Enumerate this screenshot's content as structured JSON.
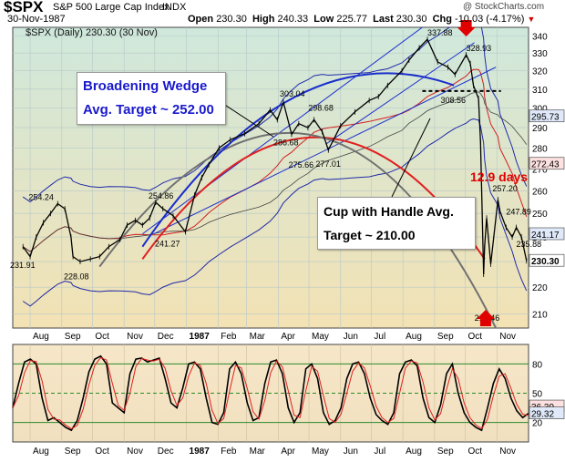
{
  "header": {
    "symbol": "$SPX",
    "name": "S&P 500 Large Cap Index",
    "exchange": "INDX",
    "date": "30-Nov-1987",
    "open_label": "Open",
    "open": "230.30",
    "high_label": "High",
    "high": "240.33",
    "low_label": "Low",
    "low": "225.77",
    "last_label": "Last",
    "last": "230.30",
    "chg_label": "Chg",
    "chg": "-10.03 (-4.17%)",
    "chg_arrow": "▼",
    "watermark": "@ StockCharts.com",
    "legend": "$SPX (Daily) 230.30 (30 Nov)"
  },
  "colors": {
    "price": "#000000",
    "red": "#e02020",
    "blue": "#1a2ecc",
    "gray": "#707070",
    "wedge_text": "#1a1acc",
    "days_text": "#e00000"
  },
  "callouts": {
    "wedge": "Broadening Wedge\nAvg. Target ~ 252.00",
    "cup": "Cup with Handle Avg.\nTarget ~  210.00",
    "days": "12.9 days"
  },
  "chart_data": [
    {
      "type": "line",
      "title": "$SPX (Daily) 230.30 (30 Nov)",
      "x_tick_labels": [
        "Aug",
        "Sep",
        "Oct",
        "Nov",
        "Dec",
        "1987",
        "Feb",
        "Mar",
        "Apr",
        "May",
        "Jun",
        "Jul",
        "Aug",
        "Sep",
        "Oct",
        "Nov"
      ],
      "y_tick_labels": [
        210,
        220,
        230,
        240,
        250,
        260,
        270,
        280,
        290,
        300,
        310,
        320,
        330,
        340
      ],
      "y_scale": "log",
      "ylim": [
        205,
        345
      ],
      "grid": true,
      "series": [
        {
          "name": "$SPX",
          "x": [
            "1986-07-25",
            "1986-08-01",
            "1986-08-07",
            "1986-08-14",
            "1986-08-21",
            "1986-08-28",
            "1986-09-04",
            "1986-09-10",
            "1986-09-12",
            "1986-09-19",
            "1986-09-29",
            "1986-10-08",
            "1986-10-17",
            "1986-10-28",
            "1986-11-04",
            "1986-11-12",
            "1986-11-19",
            "1986-11-26",
            "1986-12-02",
            "1986-12-09",
            "1986-12-19",
            "1986-12-31",
            "1987-01-09",
            "1987-01-16",
            "1987-01-23",
            "1987-02-02",
            "1987-02-13",
            "1987-02-27",
            "1987-03-13",
            "1987-03-24",
            "1987-03-31",
            "1987-04-06",
            "1987-04-14",
            "1987-04-21",
            "1987-04-30",
            "1987-05-06",
            "1987-05-14",
            "1987-05-20",
            "1987-06-01",
            "1987-06-15",
            "1987-06-29",
            "1987-07-08",
            "1987-07-17",
            "1987-07-31",
            "1987-08-07",
            "1987-08-17",
            "1987-08-25",
            "1987-09-04",
            "1987-09-14",
            "1987-09-21",
            "1987-10-02",
            "1987-10-06",
            "1987-10-09",
            "1987-10-14",
            "1987-10-16",
            "1987-10-19",
            "1987-10-20",
            "1987-10-22",
            "1987-10-26",
            "1987-11-02",
            "1987-11-04",
            "1987-11-10",
            "1987-11-16",
            "1987-11-20",
            "1987-11-25",
            "1987-11-30"
          ],
          "values": [
            236,
            232,
            240,
            246,
            250,
            254.24,
            252,
            240,
            232,
            230,
            231,
            232,
            236,
            239,
            245,
            247,
            245,
            248,
            254.86,
            252,
            249,
            242.17,
            258,
            266,
            272,
            280,
            284,
            287,
            292,
            299,
            294,
            303.04,
            286.68,
            292,
            290,
            294,
            288,
            279,
            291,
            298,
            304,
            306,
            312,
            320,
            326,
            333,
            337.88,
            325,
            322,
            318,
            328.93,
            324,
            312,
            305,
            283,
            225,
            236,
            248,
            229,
            256,
            251,
            244,
            240,
            244,
            240,
            230.3
          ]
        }
      ],
      "annotations": [
        "337.88",
        "328.93",
        "308.56",
        "303.04",
        "298.68",
        "286.68",
        "275.66",
        "277.01",
        "254.24",
        "254.86",
        "231.91",
        "228.08",
        "241.27",
        "257.20",
        "247.89",
        "235.88",
        "216.46"
      ],
      "right_axis_labels": [
        "295.73",
        "272.43",
        "241.17",
        "230.30"
      ]
    },
    {
      "type": "line",
      "title": "",
      "ylim": [
        0,
        100
      ],
      "y_tick_labels": [
        20,
        50,
        80
      ],
      "right_axis_labels": [
        "36.39",
        "29.32"
      ],
      "grid": true,
      "series": [
        {
          "name": "",
          "values": [
            35,
            60,
            82,
            85,
            80,
            45,
            22,
            25,
            20,
            15,
            12,
            22,
            45,
            72,
            85,
            88,
            80,
            40,
            35,
            30,
            70,
            85,
            86,
            82,
            84,
            86,
            65,
            40,
            35,
            55,
            80,
            82,
            75,
            45,
            20,
            18,
            30,
            75,
            82,
            70,
            40,
            22,
            25,
            60,
            82,
            84,
            70,
            35,
            20,
            30,
            75,
            80,
            65,
            30,
            18,
            22,
            35,
            65,
            80,
            82,
            70,
            45,
            28,
            22,
            18,
            30,
            70,
            82,
            84,
            78,
            45,
            25,
            20,
            38,
            70,
            80,
            50,
            30,
            20,
            15,
            12,
            35,
            60,
            75,
            65,
            45,
            32,
            25,
            29.32
          ]
        }
      ]
    }
  ]
}
